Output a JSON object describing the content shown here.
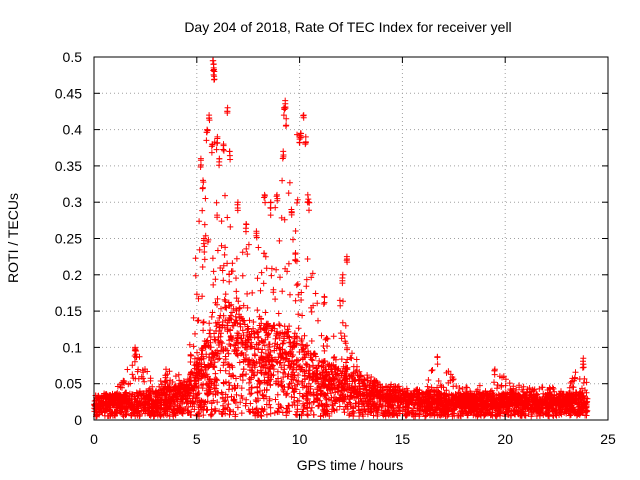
{
  "chart_data": {
    "type": "scatter",
    "title": "Day 204 of 2018, Rate Of TEC Index for receiver yell",
    "xlabel": "GPS time / hours",
    "ylabel": "ROTI / TECUs",
    "xlim": [
      0,
      25
    ],
    "ylim": [
      0,
      0.5
    ],
    "xticks": [
      0,
      5,
      10,
      15,
      20,
      25
    ],
    "xtick_labels": [
      "0",
      "5",
      "10",
      "15",
      "20",
      "25"
    ],
    "yticks": [
      0,
      0.05,
      0.1,
      0.15,
      0.2,
      0.25,
      0.3,
      0.35,
      0.4,
      0.45,
      0.5
    ],
    "ytick_labels": [
      "0",
      "0.05",
      "0.1",
      "0.15",
      "0.2",
      "0.25",
      "0.3",
      "0.35",
      "0.4",
      "0.45",
      "0.5"
    ],
    "grid": true,
    "marker": "+",
    "color": "#ff0000",
    "series": [
      {
        "name": "ROTI",
        "envelope": [
          {
            "x": 0.0,
            "y_median": 0.018,
            "y_upper": 0.035
          },
          {
            "x": 1.0,
            "y_median": 0.02,
            "y_upper": 0.04
          },
          {
            "x": 1.5,
            "y_median": 0.022,
            "y_upper": 0.06
          },
          {
            "x": 2.0,
            "y_median": 0.02,
            "y_upper": 0.1
          },
          {
            "x": 3.0,
            "y_median": 0.022,
            "y_upper": 0.045
          },
          {
            "x": 3.5,
            "y_median": 0.025,
            "y_upper": 0.07
          },
          {
            "x": 4.5,
            "y_median": 0.03,
            "y_upper": 0.09
          },
          {
            "x": 5.5,
            "y_median": 0.07,
            "y_upper": 0.42
          },
          {
            "x": 6.0,
            "y_median": 0.09,
            "y_upper": 0.38
          },
          {
            "x": 6.5,
            "y_median": 0.1,
            "y_upper": 0.3
          },
          {
            "x": 7.0,
            "y_median": 0.09,
            "y_upper": 0.28
          },
          {
            "x": 7.5,
            "y_median": 0.08,
            "y_upper": 0.26
          },
          {
            "x": 8.0,
            "y_median": 0.08,
            "y_upper": 0.25
          },
          {
            "x": 8.5,
            "y_median": 0.08,
            "y_upper": 0.3
          },
          {
            "x": 9.0,
            "y_median": 0.08,
            "y_upper": 0.35
          },
          {
            "x": 9.5,
            "y_median": 0.08,
            "y_upper": 0.43
          },
          {
            "x": 10.0,
            "y_median": 0.07,
            "y_upper": 0.39
          },
          {
            "x": 10.5,
            "y_median": 0.06,
            "y_upper": 0.22
          },
          {
            "x": 11.0,
            "y_median": 0.05,
            "y_upper": 0.16
          },
          {
            "x": 11.5,
            "y_median": 0.045,
            "y_upper": 0.1
          },
          {
            "x": 12.0,
            "y_median": 0.045,
            "y_upper": 0.22
          },
          {
            "x": 12.5,
            "y_median": 0.04,
            "y_upper": 0.1
          },
          {
            "x": 13.0,
            "y_median": 0.035,
            "y_upper": 0.07
          },
          {
            "x": 14.0,
            "y_median": 0.03,
            "y_upper": 0.05
          },
          {
            "x": 15.0,
            "y_median": 0.025,
            "y_upper": 0.04
          },
          {
            "x": 16.0,
            "y_median": 0.022,
            "y_upper": 0.045
          },
          {
            "x": 16.7,
            "y_median": 0.022,
            "y_upper": 0.085
          },
          {
            "x": 17.5,
            "y_median": 0.02,
            "y_upper": 0.06
          },
          {
            "x": 18.5,
            "y_median": 0.02,
            "y_upper": 0.04
          },
          {
            "x": 19.5,
            "y_median": 0.02,
            "y_upper": 0.07
          },
          {
            "x": 20.5,
            "y_median": 0.02,
            "y_upper": 0.05
          },
          {
            "x": 22.0,
            "y_median": 0.02,
            "y_upper": 0.045
          },
          {
            "x": 23.0,
            "y_median": 0.02,
            "y_upper": 0.045
          },
          {
            "x": 23.8,
            "y_median": 0.022,
            "y_upper": 0.085
          },
          {
            "x": 24.0,
            "y_median": 0.02,
            "y_upper": 0.05
          }
        ],
        "outliers": [
          {
            "x": 5.2,
            "y": 0.36
          },
          {
            "x": 5.3,
            "y": 0.33
          },
          {
            "x": 5.35,
            "y": 0.25
          },
          {
            "x": 5.5,
            "y": 0.4
          },
          {
            "x": 5.6,
            "y": 0.42
          },
          {
            "x": 5.75,
            "y": 0.38
          },
          {
            "x": 5.8,
            "y": 0.495
          },
          {
            "x": 5.82,
            "y": 0.485
          },
          {
            "x": 5.85,
            "y": 0.48
          },
          {
            "x": 6.0,
            "y": 0.39
          },
          {
            "x": 6.1,
            "y": 0.36
          },
          {
            "x": 6.3,
            "y": 0.38
          },
          {
            "x": 6.5,
            "y": 0.43
          },
          {
            "x": 6.6,
            "y": 0.37
          },
          {
            "x": 7.0,
            "y": 0.3
          },
          {
            "x": 7.4,
            "y": 0.27
          },
          {
            "x": 7.9,
            "y": 0.26
          },
          {
            "x": 8.3,
            "y": 0.31
          },
          {
            "x": 8.6,
            "y": 0.3
          },
          {
            "x": 8.9,
            "y": 0.31
          },
          {
            "x": 9.2,
            "y": 0.37
          },
          {
            "x": 9.25,
            "y": 0.43
          },
          {
            "x": 9.3,
            "y": 0.44
          },
          {
            "x": 9.35,
            "y": 0.415
          },
          {
            "x": 9.6,
            "y": 0.29
          },
          {
            "x": 9.8,
            "y": 0.23
          },
          {
            "x": 10.0,
            "y": 0.39
          },
          {
            "x": 10.05,
            "y": 0.395
          },
          {
            "x": 10.2,
            "y": 0.42
          },
          {
            "x": 10.3,
            "y": 0.39
          },
          {
            "x": 10.4,
            "y": 0.31
          },
          {
            "x": 10.45,
            "y": 0.3
          },
          {
            "x": 11.2,
            "y": 0.17
          },
          {
            "x": 12.1,
            "y": 0.2
          },
          {
            "x": 12.3,
            "y": 0.225
          },
          {
            "x": 2.0,
            "y": 0.1
          },
          {
            "x": 2.05,
            "y": 0.095
          },
          {
            "x": 16.7,
            "y": 0.087
          },
          {
            "x": 19.5,
            "y": 0.07
          },
          {
            "x": 23.8,
            "y": 0.085
          },
          {
            "x": 4.7,
            "y": 0.09
          },
          {
            "x": 3.5,
            "y": 0.07
          }
        ]
      }
    ]
  }
}
